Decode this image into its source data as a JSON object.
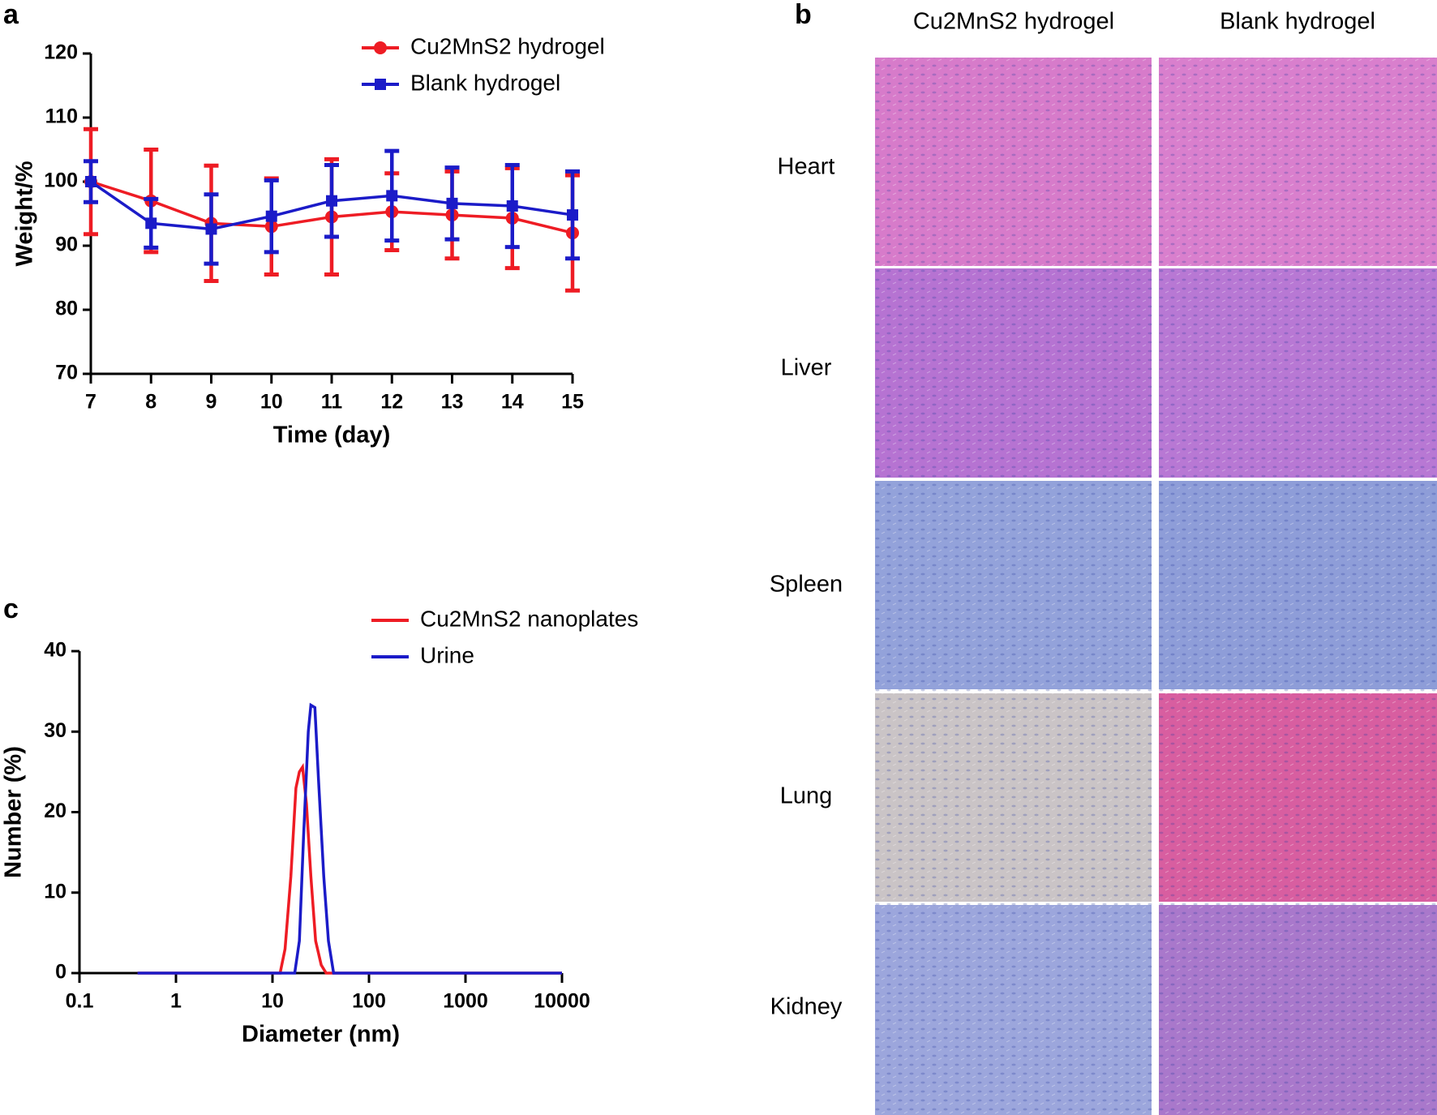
{
  "chart_data": [
    {
      "type": "line",
      "panel_label": "a",
      "xlabel": "Time (day)",
      "ylabel": "Weight/%",
      "x": [
        7,
        8,
        9,
        10,
        11,
        12,
        13,
        14,
        15
      ],
      "xlim": [
        7,
        15
      ],
      "xticks": [
        7,
        8,
        9,
        10,
        11,
        12,
        13,
        14,
        15
      ],
      "ylim": [
        70,
        120
      ],
      "yticks": [
        70,
        80,
        90,
        100,
        110,
        120
      ],
      "legend": "top-right",
      "series": [
        {
          "name": "Cu2MnS2 hydrogel",
          "color": "#ee1c24",
          "marker": "circle",
          "values": [
            100,
            97,
            93.5,
            93,
            94.5,
            95.3,
            94.8,
            94.3,
            92
          ],
          "errors": [
            8.2,
            8,
            9,
            7.5,
            9,
            6,
            6.8,
            7.8,
            9
          ]
        },
        {
          "name": "Blank hydrogel",
          "color": "#1b1bc8",
          "marker": "square",
          "values": [
            100,
            93.5,
            92.6,
            94.6,
            97,
            97.8,
            96.6,
            96.2,
            94.8
          ],
          "errors": [
            3.2,
            3.8,
            5.4,
            5.6,
            5.6,
            7,
            5.6,
            6.4,
            6.8
          ]
        }
      ]
    },
    {
      "type": "line",
      "panel_label": "c",
      "xlabel": "Diameter (nm)",
      "ylabel": "Number (%)",
      "xscale": "log",
      "xlim": [
        0.1,
        10000
      ],
      "xticks": [
        0.1,
        1,
        10,
        100,
        1000,
        10000
      ],
      "ylim": [
        0,
        40
      ],
      "yticks": [
        0,
        10,
        20,
        30,
        40
      ],
      "legend": "top-right",
      "series": [
        {
          "name": "Cu2MnS2 nanoplates",
          "color": "#ee1c24",
          "x": [
            0.4,
            12,
            13.5,
            15.5,
            17.5,
            19,
            20.5,
            22.5,
            25,
            28,
            32,
            36,
            10000
          ],
          "values": [
            0,
            0,
            3,
            12,
            23,
            25,
            25.6,
            21,
            12,
            4,
            1,
            0,
            0
          ]
        },
        {
          "name": "Urine",
          "color": "#1b1bc8",
          "x": [
            0.4,
            17,
            19,
            21,
            23.5,
            25,
            27.5,
            30,
            34,
            38,
            43,
            10000
          ],
          "values": [
            0,
            0,
            4,
            17,
            30,
            33.3,
            33,
            24,
            12,
            4,
            0,
            0
          ]
        }
      ]
    }
  ],
  "panel_b": {
    "label": "b",
    "columns": [
      "Cu2MnS2 hydrogel",
      "Blank hydrogel"
    ],
    "rows": [
      "Heart",
      "Liver",
      "Spleen",
      "Lung",
      "Kidney"
    ]
  }
}
